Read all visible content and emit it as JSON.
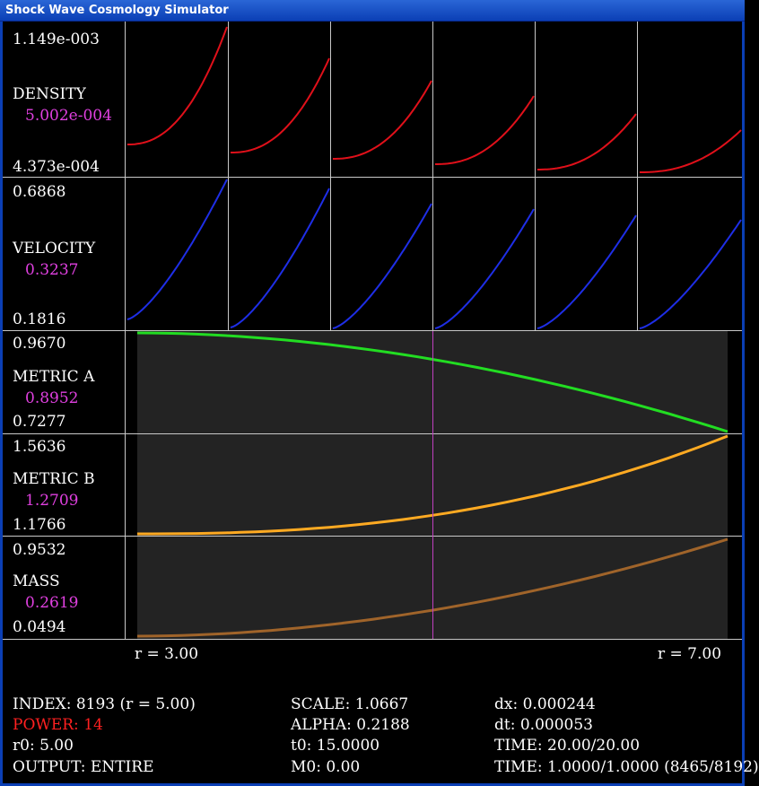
{
  "window": {
    "title": "Shock Wave Cosmology Simulator"
  },
  "colors": {
    "density": "#e0101a",
    "velocity": "#1e2ee6",
    "metric_a": "#22dd22",
    "metric_b": "#ffaa22",
    "mass": "#a0642a",
    "cursor": "#c040c0",
    "current_value": "#e040e0",
    "power": "#ff2020"
  },
  "density": {
    "label": "DENSITY",
    "max": "1.149e-003",
    "current": "5.002e-004",
    "min": "4.373e-004"
  },
  "velocity": {
    "label": "VELOCITY",
    "max": "0.6868",
    "current": "0.3237",
    "min": "0.1816"
  },
  "metric_a": {
    "label": "METRIC A",
    "max": "0.9670",
    "current": "0.8952",
    "min": "0.7277"
  },
  "metric_b": {
    "label": "METRIC B",
    "max": "1.5636",
    "current": "1.2709",
    "min": "1.1766"
  },
  "mass": {
    "label": "MASS",
    "max": "0.9532",
    "current": "0.2619",
    "min": "0.0494"
  },
  "axis": {
    "r_start": "r = 3.00",
    "r_end": "r = 7.00"
  },
  "status": {
    "index": "INDEX: 8193 (r = 5.00)",
    "power": "POWER: 14",
    "r0": "r0: 5.00",
    "output": "OUTPUT: ENTIRE",
    "scale": "SCALE: 1.0667",
    "alpha": "ALPHA: 0.2188",
    "t0": "t0: 15.0000",
    "m0": "M0: 0.00",
    "dx": "dx: 0.000244",
    "dt": "dt: 0.000053",
    "time": "TIME: 20.00/20.00",
    "time_ratio": "TIME: 1.0000/1.0000 (8465/8192)"
  }
}
